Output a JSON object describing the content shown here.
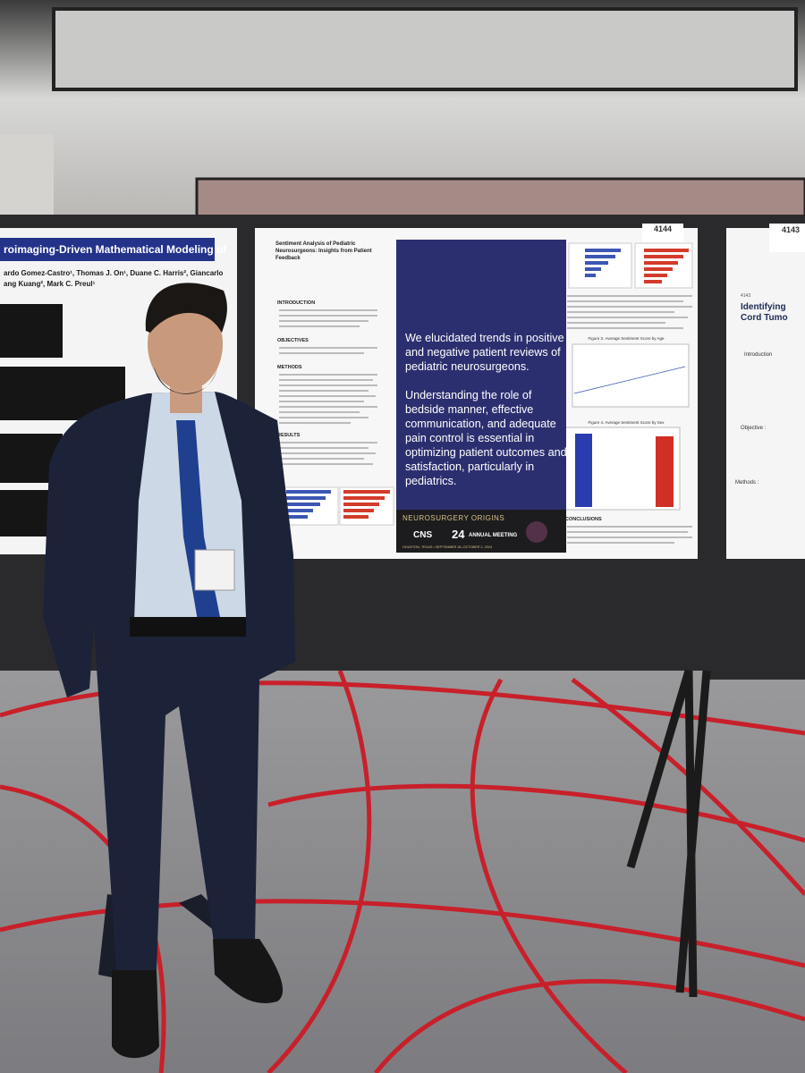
{
  "left_poster": {
    "title": "roimaging-Driven Mathematical Modeling of",
    "authors_line_1": "ardo Gomez-Castro¹, Thomas J. On¹, Duane C. Harris², Giancarlo",
    "authors_line_2": "ang Kuang², Mark C. Preul¹"
  },
  "center_poster": {
    "board_number": "4144",
    "title_lines": [
      "Sentiment Analysis of Pediatric",
      "Neurosurgeons: Insights from Patient",
      "Feedback"
    ],
    "sections": [
      "INTRODUCTION",
      "OBJECTIVES",
      "METHODS",
      "RESULTS",
      "CONCLUSIONS"
    ],
    "figure_3_title": "Figure 3. Average Sentiment Score by Age",
    "figure_4_title": "Figure 4. Average Sentiment Score by Sex",
    "highlight_lines": [
      "We elucidated trends in positive",
      "and negative patient reviews of",
      "pediatric neurosurgeons.",
      "Understanding the role of",
      "bedside manner, effective",
      "communication, and adequate",
      "pain control is essential in",
      "optimizing patient outcomes and",
      "satisfaction, particularly in",
      "pediatrics."
    ],
    "footer": {
      "brand": "NEUROSURGERY ORIGINS",
      "org": "CNS",
      "year": "24",
      "meeting": "ANNUAL MEETING",
      "location": "HOUSTON, TEXAS • SEPTEMBER 28–OCTOBER 2, 2024"
    }
  },
  "right_poster": {
    "board_number": "4143",
    "poster_id": "4143",
    "title_lines": [
      "Identifying",
      "Cord Tumo"
    ],
    "sections": [
      "Introduction",
      "Objective :",
      "Methods :"
    ]
  }
}
